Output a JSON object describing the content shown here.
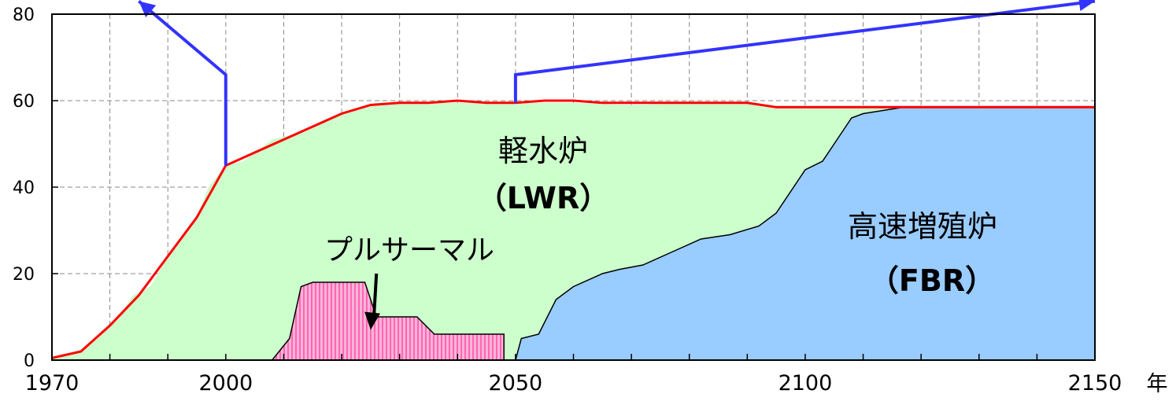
{
  "chart_data": {
    "type": "area",
    "xlim": [
      1970,
      2150
    ],
    "ylim": [
      0,
      80
    ],
    "x_ticks": [
      1970,
      2000,
      2050,
      2100,
      2150
    ],
    "y_ticks": [
      0,
      20,
      40,
      60,
      80
    ],
    "x_unit": "年",
    "grid": true,
    "series": [
      {
        "name": "軽水炉\n(LWR)",
        "color": "#ccffcc",
        "points": [
          [
            1970,
            0.5
          ],
          [
            1972,
            1.5
          ],
          [
            1975,
            2
          ],
          [
            1977,
            4
          ],
          [
            1980,
            8
          ],
          [
            1982,
            11
          ],
          [
            1984,
            15
          ],
          [
            1987,
            17
          ],
          [
            1990,
            24
          ],
          [
            1992,
            27
          ],
          [
            1995,
            33
          ],
          [
            1997,
            40
          ],
          [
            2000,
            45
          ],
          [
            2003,
            46
          ],
          [
            2006,
            49
          ],
          [
            2008,
            51
          ],
          [
            2011,
            52
          ],
          [
            2015,
            54
          ],
          [
            2018,
            56
          ],
          [
            2022,
            58
          ],
          [
            2025,
            59
          ],
          [
            2030,
            59.5
          ],
          [
            2040,
            59.5
          ],
          [
            2050,
            59.5
          ],
          [
            2060,
            59.5
          ],
          [
            2070,
            59
          ],
          [
            2080,
            59.5
          ],
          [
            2090,
            59.5
          ],
          [
            2095,
            58.5
          ],
          [
            2150,
            58.5
          ]
        ]
      },
      {
        "name": "高速増殖炉\n(FBR)",
        "color": "#99ccff",
        "points": [
          [
            2050,
            0
          ],
          [
            2051,
            5
          ],
          [
            2054,
            6
          ],
          [
            2057,
            14
          ],
          [
            2060,
            17
          ],
          [
            2065,
            20
          ],
          [
            2068,
            21
          ],
          [
            2072,
            22
          ],
          [
            2077,
            25
          ],
          [
            2082,
            28
          ],
          [
            2087,
            29
          ],
          [
            2092,
            31
          ],
          [
            2095,
            34
          ],
          [
            2098,
            40
          ],
          [
            2100,
            44
          ],
          [
            2103,
            46
          ],
          [
            2106,
            52
          ],
          [
            2108,
            56
          ],
          [
            2110,
            57
          ],
          [
            2117,
            58.5
          ],
          [
            2150,
            58.5
          ]
        ]
      },
      {
        "name": "プルサーマル",
        "color": "#ff99cc",
        "points": [
          [
            2008,
            0
          ],
          [
            2011,
            5
          ],
          [
            2013,
            17
          ],
          [
            2015,
            18
          ],
          [
            2024,
            18
          ],
          [
            2026,
            10
          ],
          [
            2033,
            10
          ],
          [
            2036,
            6
          ],
          [
            2048,
            6
          ],
          [
            2048,
            0
          ]
        ]
      }
    ],
    "total_capacity": [
      [
        1970,
        0.5
      ],
      [
        1975,
        2
      ],
      [
        1980,
        8
      ],
      [
        1985,
        15
      ],
      [
        1990,
        24
      ],
      [
        1995,
        33
      ],
      [
        2000,
        45
      ],
      [
        2005,
        48
      ],
      [
        2010,
        51
      ],
      [
        2015,
        54
      ],
      [
        2020,
        57
      ],
      [
        2025,
        59
      ],
      [
        2030,
        59.5
      ],
      [
        2035,
        59.5
      ],
      [
        2040,
        60
      ],
      [
        2045,
        59.5
      ],
      [
        2050,
        59.5
      ],
      [
        2055,
        60
      ],
      [
        2060,
        60
      ],
      [
        2065,
        59.5
      ],
      [
        2070,
        59.5
      ],
      [
        2080,
        59.5
      ],
      [
        2090,
        59.5
      ],
      [
        2095,
        58.5
      ],
      [
        2150,
        58.5
      ]
    ],
    "scenario_lines": [
      {
        "points": [
          [
            2000,
            45
          ],
          [
            2000,
            66
          ],
          [
            1985,
            83
          ]
        ]
      },
      {
        "points": [
          [
            2050,
            59.5
          ],
          [
            2050,
            66
          ],
          [
            2150,
            83
          ]
        ]
      }
    ],
    "annotations": [
      {
        "text": "軽水炉",
        "x": 2072,
        "y": 50
      },
      {
        "text": "(LWR)",
        "x": 2072,
        "y": 38
      },
      {
        "text": "高速増殖炉",
        "x": 2122,
        "y": 32
      },
      {
        "text": "(FBR)",
        "x": 2122,
        "y": 20
      },
      {
        "text": "プルサーマル",
        "x": 2022,
        "y": 26
      },
      {
        "text": "",
        "x": 2025,
        "y": 7
      }
    ]
  },
  "labels": {
    "lwr_line1": "軽水炉",
    "lwr_line2": "（LWR）",
    "fbr_line1": "高速増殖炉",
    "fbr_line2": "（FBR）",
    "pluthermal": "プルサーマル",
    "year_unit": "年"
  }
}
